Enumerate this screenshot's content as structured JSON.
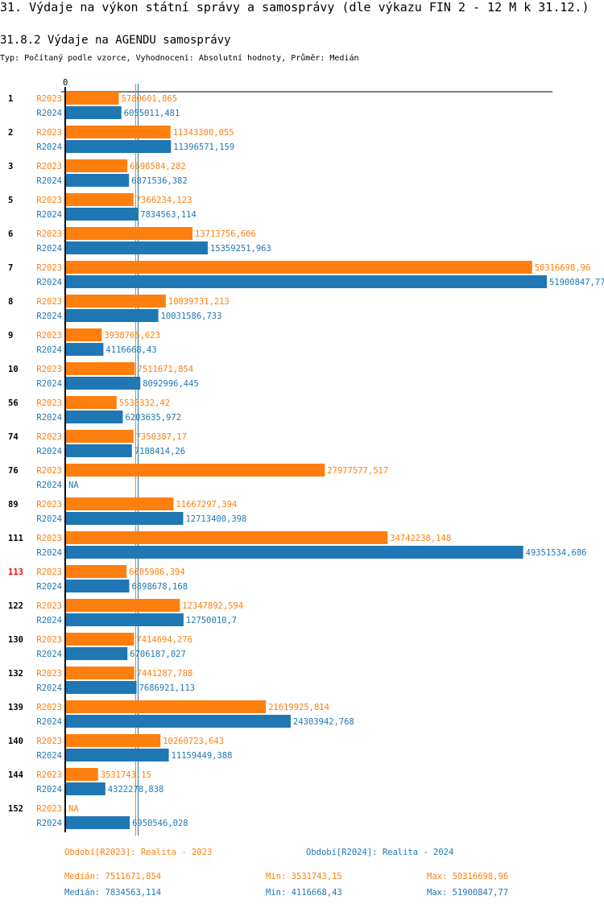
{
  "header": {
    "title": "31. Výdaje na výkon státní správy a samosprávy (dle výkazu FIN 2 - 12 M k 31.12.)",
    "subtitle": "31.8.2 Výdaje na AGENDU samosprávy",
    "info": "Typ: Počítaný podle vzorce, Vyhodnocení: Absolutní hodnoty, Průměr: Medián"
  },
  "chart_data": {
    "type": "bar",
    "orientation": "horizontal",
    "axis_zero_label": "0",
    "xlim": [
      0,
      51900847.77
    ],
    "grid": false,
    "series_colors": {
      "R2023": "#ff7f0e",
      "R2024": "#1f77b4"
    },
    "highlight_color": "#ff0000",
    "highlighted_category": "113",
    "categories": [
      "1",
      "2",
      "3",
      "5",
      "6",
      "7",
      "8",
      "9",
      "10",
      "56",
      "74",
      "76",
      "89",
      "111",
      "113",
      "122",
      "130",
      "132",
      "139",
      "140",
      "144",
      "152"
    ],
    "series": [
      {
        "name": "R2023",
        "values": [
          5780601.865,
          11343300.055,
          6698584.282,
          7366234.123,
          13713756.606,
          50316698.96,
          10839731.213,
          3938766.623,
          7511671.854,
          5538332.42,
          7350387.17,
          27977577.517,
          11667297.394,
          34742238.148,
          6605986.394,
          12347892.594,
          7414694.276,
          7441287.788,
          21619925.814,
          10260723.643,
          3531743.15,
          null
        ],
        "labels": [
          "5780601,865",
          "11343300,055",
          "6698584,282",
          "7366234,123",
          "13713756,606",
          "50316698,96",
          "10839731,213",
          "3938766,623",
          "7511671,854",
          "5538332,42",
          "7350387,17",
          "27977577,517",
          "11667297,394",
          "34742238,148",
          "6605986,394",
          "12347892,594",
          "7414694,276",
          "7441287,788",
          "21619925,814",
          "10260723,643",
          "3531743,15",
          "NA"
        ]
      },
      {
        "name": "R2024",
        "values": [
          6055011.481,
          11396571.159,
          6871536.382,
          7834563.114,
          15359251.963,
          51900847.77,
          10031586.733,
          4116668.43,
          8092996.445,
          6203635.972,
          7188414.26,
          null,
          12713400.398,
          49351534.686,
          6898678.168,
          12750010.7,
          6706187.027,
          7686921.113,
          24303942.768,
          11159449.388,
          4322278.838,
          6950546.028
        ],
        "labels": [
          "6055011,481",
          "11396571,159",
          "6871536,382",
          "7834563,114",
          "15359251,963",
          "51900847,77",
          "10031586,733",
          "4116668,43",
          "8092996,445",
          "6203635,972",
          "7188414,26",
          "NA",
          "12713400,398",
          "49351534,686",
          "6898678,168",
          "12750010,7",
          "6706187,027",
          "7686921,113",
          "24303942,768",
          "11159449,388",
          "4322278,838",
          "6950546,028"
        ]
      }
    ],
    "medians": {
      "R2023": 7511671.854,
      "R2024": 7834563.114
    }
  },
  "legend": {
    "r2023": "Období[R2023]: Realita - 2023",
    "r2024": "Období[R2024]: Realita - 2024"
  },
  "stats": {
    "r2023": {
      "median": "Medián: 7511671,854",
      "min": "Min: 3531743,15",
      "max": "Max: 50316698,96"
    },
    "r2024": {
      "median": "Medián: 7834563,114",
      "min": "Min: 4116668,43",
      "max": "Max: 51900847,77"
    }
  }
}
